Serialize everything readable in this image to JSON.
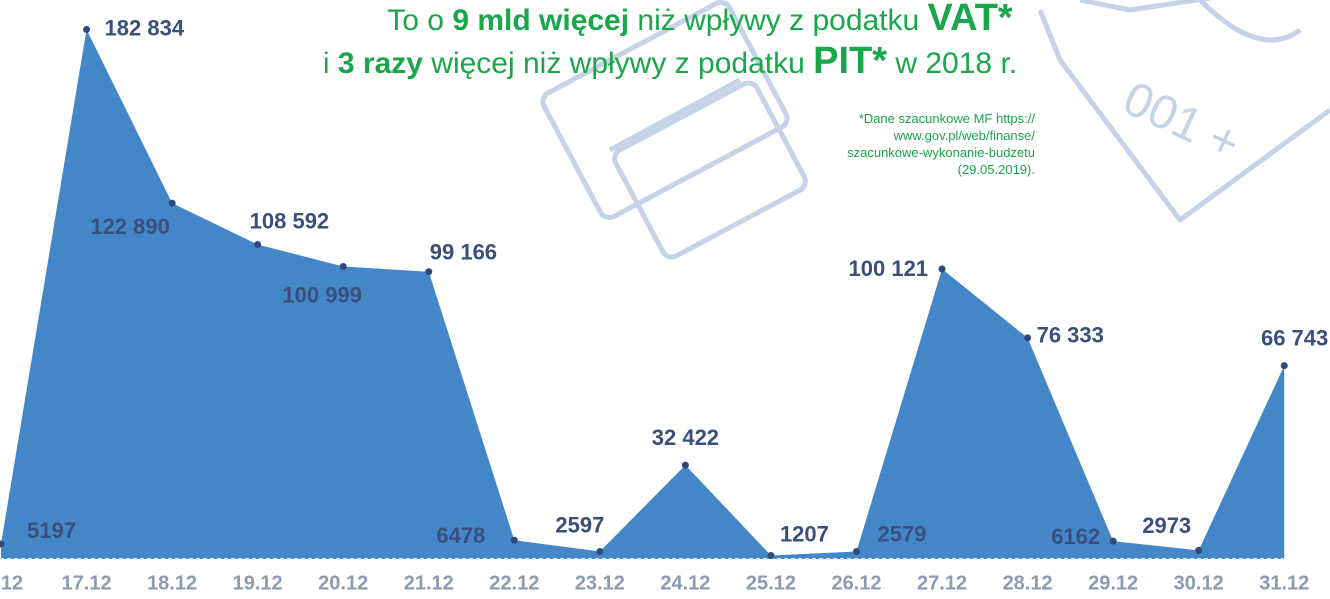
{
  "chart_data": {
    "type": "area",
    "title_lines": [
      [
        "To o ",
        "9 mld więcej",
        " niż wpływy z podatku ",
        "VAT*"
      ],
      [
        "i ",
        "3 razy",
        " więcej niż wpływy z podatku ",
        "PIT*",
        " w 2018 r."
      ]
    ],
    "note": [
      "*Dane szacunkowe MF https://",
      "www.gov.pl/web/finanse/",
      "szacunkowe-wykonanie-budzetu",
      "(29.05.2019)."
    ],
    "categories": [
      "12",
      "17.12",
      "18.12",
      "19.12",
      "20.12",
      "21.12",
      "22.12",
      "23.12",
      "24.12",
      "25.12",
      "26.12",
      "27.12",
      "28.12",
      "29.12",
      "30.12",
      "31.12"
    ],
    "values": [
      5197,
      182834,
      122890,
      108592,
      100999,
      99166,
      6478,
      2597,
      32422,
      1207,
      2579,
      100121,
      76333,
      6162,
      2973,
      66743
    ],
    "value_labels": [
      "5197",
      "182 834",
      "122 890",
      "108 592",
      "100 999",
      "99 166",
      "6478",
      "2597",
      "32 422",
      "1207",
      "2579",
      "100 121",
      "76 333",
      "6162",
      "2973",
      "66 743"
    ],
    "color": "#4387c8",
    "marker_color": "#2e4a7a",
    "title_color": "#1aa64a",
    "ylim": [
      0,
      193000
    ]
  }
}
